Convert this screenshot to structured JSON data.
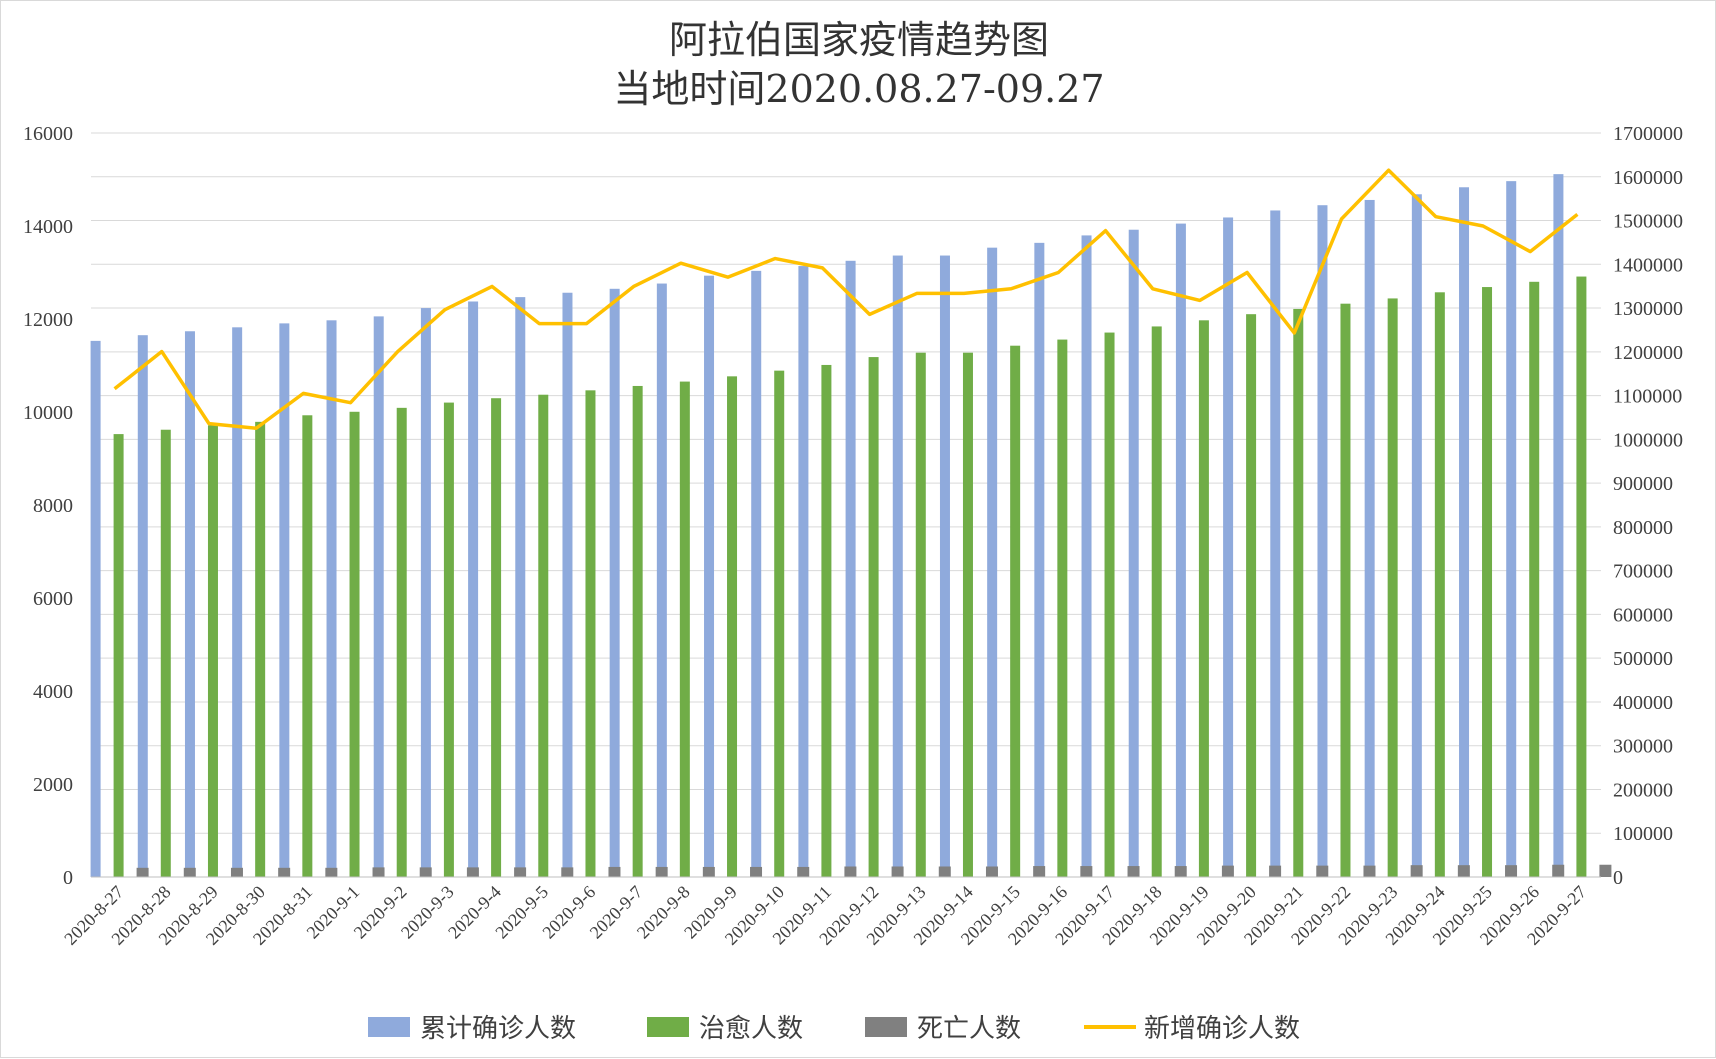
{
  "chart_data": {
    "type": "bar",
    "title": "阿拉伯国家疫情趋势图",
    "subtitle": "当地时间2020.08.27-09.27",
    "categories": [
      "2020-8-27",
      "2020-8-28",
      "2020-8-29",
      "2020-8-30",
      "2020-8-31",
      "2020-9-1",
      "2020-9-2",
      "2020-9-3",
      "2020-9-4",
      "2020-9-5",
      "2020-9-6",
      "2020-9-7",
      "2020-9-8",
      "2020-9-9",
      "2020-9-10",
      "2020-9-11",
      "2020-9-12",
      "2020-9-13",
      "2020-9-14",
      "2020-9-15",
      "2020-9-16",
      "2020-9-17",
      "2020-9-18",
      "2020-9-19",
      "2020-9-20",
      "2020-9-21",
      "2020-9-22",
      "2020-9-23",
      "2020-9-24",
      "2020-9-25",
      "2020-9-26",
      "2020-9-27"
    ],
    "series": [
      {
        "name": "累计确诊人数",
        "type": "bar",
        "axis": "right",
        "color": "#8faadc",
        "values": [
          1225000,
          1238000,
          1247000,
          1256000,
          1265000,
          1272000,
          1281000,
          1300000,
          1315000,
          1325000,
          1335000,
          1344000,
          1356000,
          1374000,
          1385000,
          1396000,
          1408000,
          1420000,
          1420000,
          1438000,
          1449000,
          1466000,
          1479000,
          1493000,
          1507000,
          1523000,
          1535000,
          1547000,
          1560000,
          1576000,
          1590000,
          1606000
        ]
      },
      {
        "name": "治愈人数",
        "type": "bar",
        "axis": "right",
        "color": "#70ad47",
        "values": [
          1012000,
          1022000,
          1032000,
          1040000,
          1055000,
          1063000,
          1072000,
          1084000,
          1094000,
          1102000,
          1112000,
          1122000,
          1132000,
          1144000,
          1157000,
          1170000,
          1188000,
          1198000,
          1198000,
          1214000,
          1228000,
          1244000,
          1258000,
          1272000,
          1286000,
          1298000,
          1310000,
          1322000,
          1336000,
          1348000,
          1360000,
          1372000
        ]
      },
      {
        "name": "死亡人数",
        "type": "bar",
        "axis": "right",
        "color": "#808080",
        "values": [
          21000,
          21000,
          21000,
          21000,
          21000,
          22000,
          22000,
          22000,
          22000,
          22000,
          23000,
          23000,
          23000,
          23000,
          23000,
          24000,
          24000,
          24000,
          24000,
          25000,
          25000,
          25000,
          25000,
          26000,
          26000,
          26000,
          26000,
          27000,
          27000,
          27000,
          28000,
          28000
        ]
      },
      {
        "name": "新增确诊人数",
        "type": "line",
        "axis": "left",
        "color": "#ffc000",
        "values": [
          10500,
          11300,
          9750,
          9650,
          10400,
          10200,
          11300,
          12200,
          12700,
          11900,
          11900,
          12700,
          13200,
          12900,
          13300,
          13100,
          12100,
          12550,
          12550,
          12650,
          13000,
          13900,
          12650,
          12400,
          13000,
          11700,
          14150,
          15200,
          14200,
          14000,
          13450,
          14250
        ]
      }
    ],
    "ylim_left": [
      0,
      16000
    ],
    "ylim_right": [
      0,
      1700000
    ],
    "yticks_left": [
      "0",
      "2000",
      "4000",
      "6000",
      "8000",
      "10000",
      "12000",
      "14000",
      "16000"
    ],
    "yticks_right": [
      "0",
      "100000",
      "200000",
      "300000",
      "400000",
      "500000",
      "600000",
      "700000",
      "800000",
      "900000",
      "1000000",
      "1100000",
      "1200000",
      "1300000",
      "1400000",
      "1500000",
      "1600000",
      "1700000"
    ],
    "grid": true,
    "legend_position": "bottom"
  }
}
